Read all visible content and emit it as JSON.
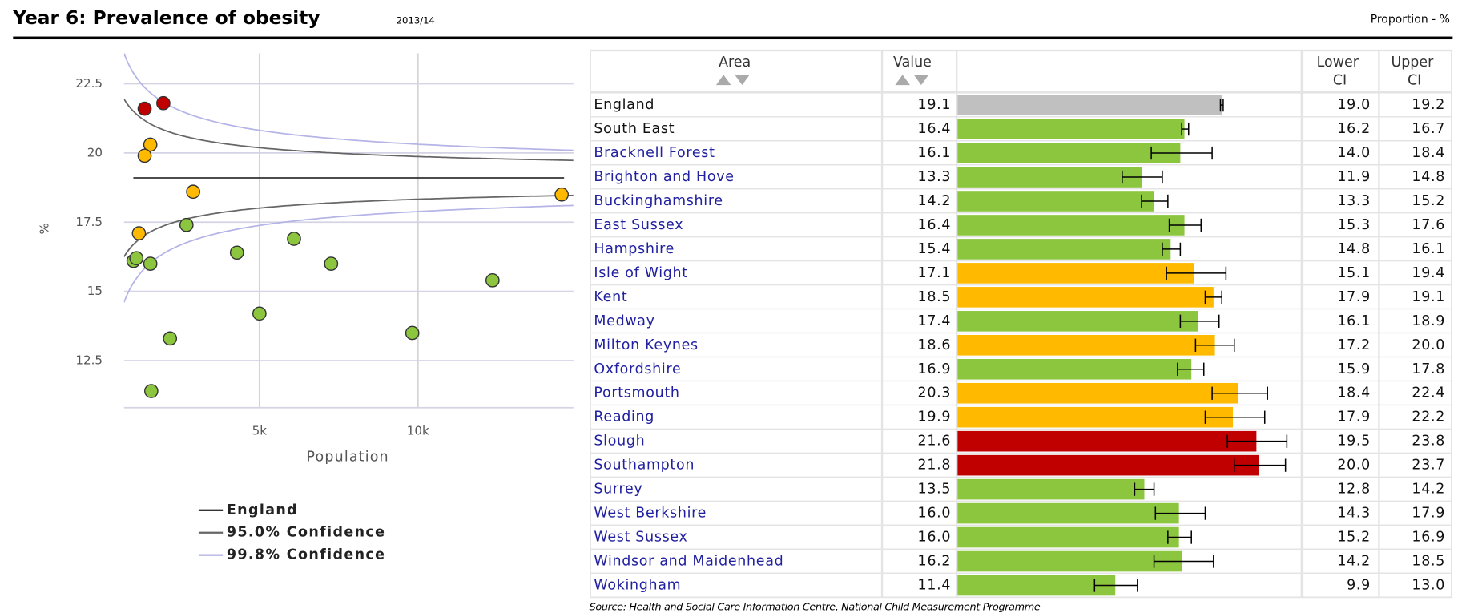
{
  "header": {
    "title": "Year 6: Prevalence of obesity",
    "period": "2013/14",
    "unit": "Proportion - %"
  },
  "chart_data": [
    {
      "type": "funnel",
      "ylabel": "%",
      "xlabel": "Population",
      "xlim": [
        730,
        14900
      ],
      "xticks": [
        {
          "value": 5000,
          "label": "5k"
        },
        {
          "value": 10000,
          "label": "10k"
        }
      ],
      "ylim": [
        10.8,
        23.6
      ],
      "yticks": [
        12.5,
        15,
        17.5,
        20,
        22.5
      ],
      "grid": true,
      "x": [
        1030,
        2180,
        5000,
        4290,
        12350,
        1200,
        14530,
        2700,
        2910,
        6090,
        1560,
        1380,
        1380,
        1970,
        9820,
        1560,
        7260,
        1120,
        1590
      ],
      "legend": [
        {
          "name": "England",
          "color": "#333333"
        },
        {
          "name": "95.0% Confidence",
          "color": "#666666"
        },
        {
          "name": "99.8% Confidence",
          "color": "#b4b4e6"
        }
      ]
    },
    {
      "type": "bar",
      "columns": [
        "Area",
        "Value",
        "Lower CI",
        "Upper CI"
      ],
      "xlim": [
        0,
        24.8
      ],
      "categories": [
        "England",
        "South East",
        "Bracknell Forest",
        "Brighton and Hove",
        "Buckinghamshire",
        "East Sussex",
        "Hampshire",
        "Isle of Wight",
        "Kent",
        "Medway",
        "Milton Keynes",
        "Oxfordshire",
        "Portsmouth",
        "Reading",
        "Slough",
        "Southampton",
        "Surrey",
        "West Berkshire",
        "West Sussex",
        "Windsor and Maidenhead",
        "Wokingham"
      ],
      "values": [
        19.1,
        16.4,
        16.1,
        13.3,
        14.2,
        16.4,
        15.4,
        17.1,
        18.5,
        17.4,
        18.6,
        16.9,
        20.3,
        19.9,
        21.6,
        21.8,
        13.5,
        16.0,
        16.0,
        16.2,
        11.4
      ],
      "value_labels": [
        "19.1",
        "16.4",
        "16.1",
        "13.3",
        "14.2",
        "16.4",
        "15.4",
        "17.1",
        "18.5",
        "17.4",
        "18.6",
        "16.9",
        "20.3",
        "19.9",
        "21.6",
        "21.8",
        "13.5",
        "16.0",
        "16.0",
        "16.2",
        "11.4"
      ],
      "lower": [
        19.0,
        16.2,
        14.0,
        11.9,
        13.3,
        15.3,
        14.8,
        15.1,
        17.9,
        16.1,
        17.2,
        15.9,
        18.4,
        17.9,
        19.5,
        20.0,
        12.8,
        14.3,
        15.2,
        14.2,
        9.9
      ],
      "lower_labels": [
        "19.0",
        "16.2",
        "14.0",
        "11.9",
        "13.3",
        "15.3",
        "14.8",
        "15.1",
        "17.9",
        "16.1",
        "17.2",
        "15.9",
        "18.4",
        "17.9",
        "19.5",
        "20.0",
        "12.8",
        "14.3",
        "15.2",
        "14.2",
        "9.9"
      ],
      "upper": [
        19.2,
        16.7,
        18.4,
        14.8,
        15.2,
        17.6,
        16.1,
        19.4,
        19.1,
        18.9,
        20.0,
        17.8,
        22.4,
        22.2,
        23.8,
        23.7,
        14.2,
        17.9,
        16.9,
        18.5,
        13.0
      ],
      "upper_labels": [
        "19.2",
        "16.7",
        "18.4",
        "14.8",
        "15.2",
        "17.6",
        "16.1",
        "19.4",
        "19.1",
        "18.9",
        "20.0",
        "17.8",
        "22.4",
        "22.2",
        "23.8",
        "23.7",
        "14.2",
        "17.9",
        "16.9",
        "18.5",
        "13.0"
      ],
      "colors": [
        "#c0c0c0",
        "#8cc63f",
        "#8cc63f",
        "#8cc63f",
        "#8cc63f",
        "#8cc63f",
        "#8cc63f",
        "#ffba00",
        "#ffba00",
        "#8cc63f",
        "#ffba00",
        "#8cc63f",
        "#ffba00",
        "#ffba00",
        "#c00000",
        "#c00000",
        "#8cc63f",
        "#8cc63f",
        "#8cc63f",
        "#8cc63f",
        "#8cc63f"
      ]
    }
  ],
  "source": "Source: Health and Social Care Information Centre, National Child Measurement Programme"
}
